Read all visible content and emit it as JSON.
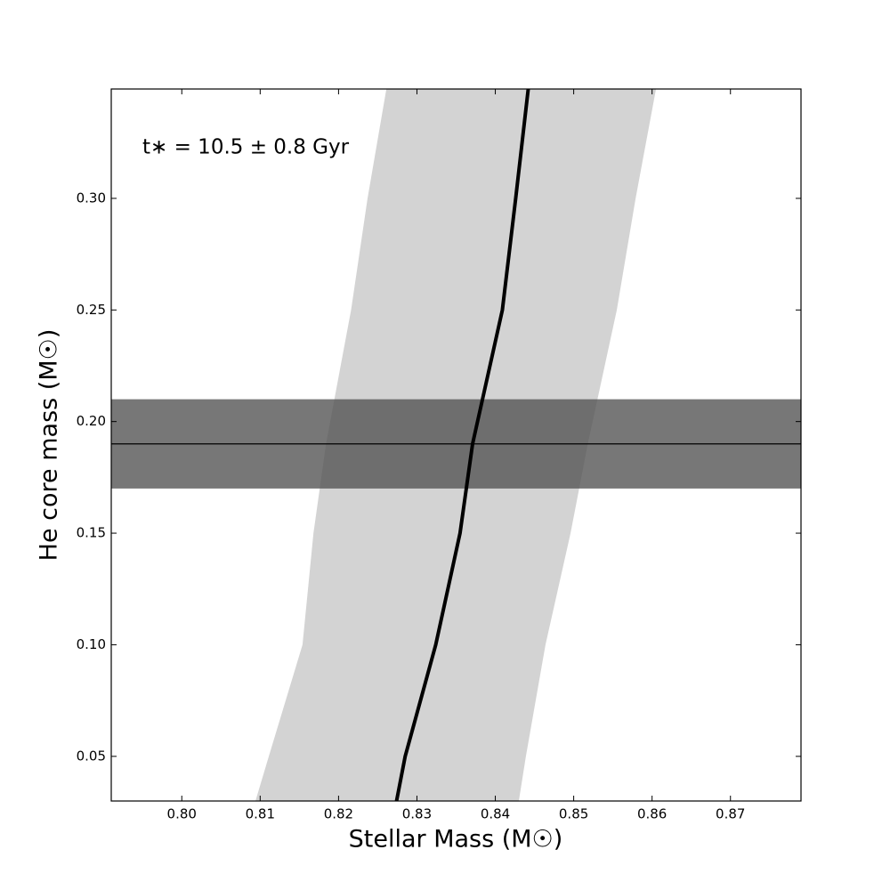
{
  "chart_data": {
    "type": "line",
    "annotation": "t∗ = 10.5 ± 0.8 Gyr",
    "xlabel": "Stellar Mass (M☉)",
    "ylabel": "He core mass (M☉)",
    "xlim": [
      0.791,
      0.879
    ],
    "ylim": [
      0.03,
      0.349
    ],
    "xticks": [
      {
        "value": 0.8,
        "label": "0.80"
      },
      0.81,
      0.82,
      0.83,
      0.84,
      0.85,
      0.86,
      0.87
    ],
    "yticks": [
      0.05,
      {
        "value": 0.1,
        "label": "0.10"
      },
      0.15,
      {
        "value": 0.2,
        "label": "0.20"
      },
      0.25,
      {
        "value": 0.3,
        "label": "0.30"
      }
    ],
    "y": [
      0.03,
      0.05,
      0.1,
      0.15,
      0.19,
      0.25,
      0.3,
      0.349
    ],
    "x_band": {
      "color": "#d3d3d3",
      "lower": [
        0.8094,
        0.8111,
        0.8154,
        0.8168,
        0.8184,
        0.8216,
        0.8237,
        0.8261
      ],
      "upper": [
        0.843,
        0.8439,
        0.8464,
        0.8496,
        0.8518,
        0.8555,
        0.8579,
        0.8605
      ]
    },
    "curve": {
      "color": "#000000",
      "x": [
        0.8274,
        0.8285,
        0.8324,
        0.8355,
        0.8371,
        0.8409,
        0.8426,
        0.8442
      ]
    },
    "y_band": {
      "color": "#555555",
      "lower": 0.17,
      "upper": 0.21,
      "center": 0.19,
      "line_color": "#000000"
    }
  }
}
